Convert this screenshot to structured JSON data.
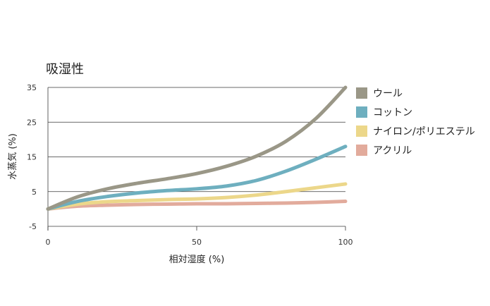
{
  "chart_data": {
    "type": "line",
    "title": "吸湿性",
    "xlabel": "相対湿度 (%)",
    "ylabel": "水蒸気 (%)",
    "xlim": [
      0,
      100
    ],
    "ylim": [
      -5,
      35
    ],
    "xticks": [
      "0",
      "50",
      "100"
    ],
    "yticks": [
      "35",
      "25",
      "15",
      "5",
      "-5"
    ],
    "grid": "horizontal",
    "legend_position": "right",
    "series": [
      {
        "name": "ウール",
        "color": "#9a9787",
        "x": [
          0,
          10,
          20,
          30,
          40,
          50,
          60,
          70,
          80,
          90,
          100
        ],
        "y": [
          0,
          3.5,
          5.8,
          7.4,
          8.7,
          10.2,
          12.3,
          15.2,
          19.5,
          26,
          35
        ]
      },
      {
        "name": "コットン",
        "color": "#6eafbf",
        "x": [
          0,
          10,
          20,
          30,
          40,
          50,
          60,
          70,
          80,
          90,
          100
        ],
        "y": [
          0,
          2.2,
          3.6,
          4.6,
          5.3,
          5.8,
          6.6,
          8.2,
          10.9,
          14.3,
          18
        ]
      },
      {
        "name": "ナイロン/ポリエステル",
        "color": "#ecd78a",
        "x": [
          0,
          10,
          20,
          30,
          40,
          50,
          60,
          70,
          80,
          90,
          100
        ],
        "y": [
          0,
          1.4,
          2.1,
          2.4,
          2.7,
          2.9,
          3.3,
          4.0,
          5.0,
          6.1,
          7.2
        ]
      },
      {
        "name": "アクリル",
        "color": "#e2ab9c",
        "x": [
          0,
          10,
          20,
          30,
          40,
          50,
          60,
          70,
          80,
          90,
          100
        ],
        "y": [
          0,
          0.8,
          1.1,
          1.3,
          1.4,
          1.5,
          1.5,
          1.6,
          1.7,
          1.9,
          2.2
        ]
      }
    ]
  }
}
